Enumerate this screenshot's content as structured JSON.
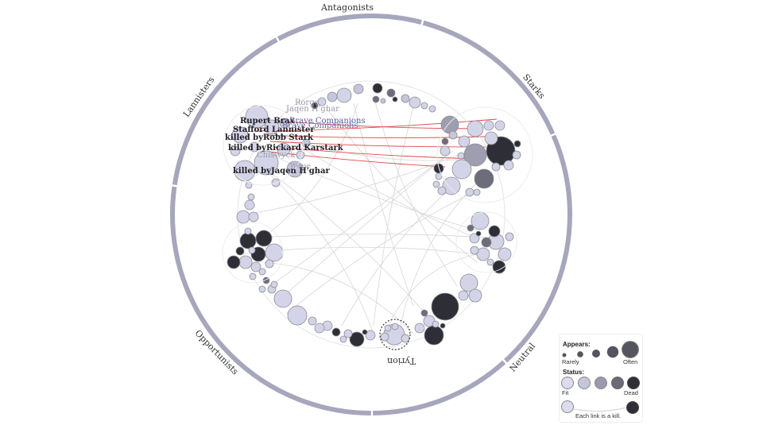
{
  "ring": {
    "sections": [
      "Antagonists",
      "Starks",
      "Neutral",
      "Opportunists",
      "Lannisters"
    ],
    "center_node": "Tyrion"
  },
  "labels": {
    "killers": [
      "Rupert Brax",
      "Stafford Lannister",
      "killed byRobb Stark",
      "killed byRickard Karstark",
      "killed byJaqen H'ghar"
    ],
    "ghosts": [
      "Rorge",
      "Jaqen H'ghar",
      "Brave Companions",
      "Brave Companions",
      "Chiswyck",
      "Weese"
    ]
  },
  "legend": {
    "appears_title": "Appears:",
    "appears_low": "Rarely",
    "appears_high": "Often",
    "status_title": "Status:",
    "status_low": "Fit",
    "status_high": "Dead",
    "link_note": "Each link is a kill."
  },
  "colors": {
    "ring": "#a6a6bd",
    "fit": "#c9c9df",
    "mid": "#8a8a98",
    "dead": "#2f2f36",
    "kill_link": "#e04848",
    "link": "#d6d6d6"
  }
}
